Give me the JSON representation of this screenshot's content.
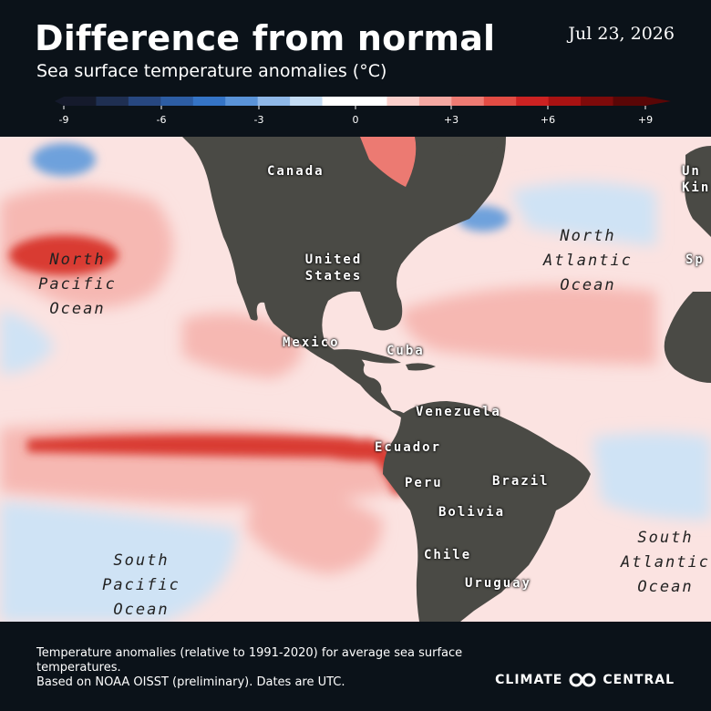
{
  "header": {
    "title": "Difference from normal",
    "subtitle": "Sea surface temperature anomalies (°C)",
    "date": "Jul 23, 2026"
  },
  "legend": {
    "ticks": [
      "-9",
      "-6",
      "-3",
      "0",
      "+3",
      "+6",
      "+9"
    ],
    "colors": [
      "#151a2c",
      "#1f2f52",
      "#274780",
      "#2d5da4",
      "#3574c6",
      "#5a93d8",
      "#8fb8e8",
      "#c4dcf4",
      "#ffffff",
      "#ffffff",
      "#fbd0cc",
      "#f5a8a2",
      "#ee7b73",
      "#e24c44",
      "#cc2222",
      "#a81212",
      "#7e0a0a",
      "#5a0606"
    ]
  },
  "map": {
    "colors": {
      "land": "#4a4a45",
      "ocean_warm_light": "#fbe3e1",
      "ocean_warm": "#f6b8b2",
      "ocean_warm_strong": "#ec7a72",
      "ocean_hot": "#d93a32",
      "ocean_cool": "#cfe3f5",
      "ocean_cold": "#6ea1dc"
    },
    "ocean_labels": {
      "north_pacific": [
        "North",
        "Pacific",
        "Ocean"
      ],
      "north_atlantic": [
        "North",
        "Atlantic",
        "Ocean"
      ],
      "south_pacific": [
        "South",
        "Pacific",
        "Ocean"
      ],
      "south_atlantic": [
        "South",
        "Atlantic",
        "Ocean"
      ]
    },
    "country_labels": {
      "canada": "Canada",
      "united_states": [
        "United",
        "States"
      ],
      "mexico": "Mexico",
      "cuba": "Cuba",
      "venezuela": "Venezuela",
      "ecuador": "Ecuador",
      "peru": "Peru",
      "brazil": "Brazil",
      "bolivia": "Bolivia",
      "chile": "Chile",
      "uruguay": "Uruguay"
    },
    "edge_labels": {
      "uk": [
        "Un",
        "Kin"
      ],
      "spain": "Sp"
    }
  },
  "footer": {
    "note_line1": "Temperature anomalies (relative to 1991-2020) for average sea surface",
    "note_line2": "temperatures.",
    "note_line3": "Based on NOAA OISST (preliminary). Dates are UTC.",
    "brand_left": "CLIMATE",
    "brand_right": "CENTRAL"
  }
}
